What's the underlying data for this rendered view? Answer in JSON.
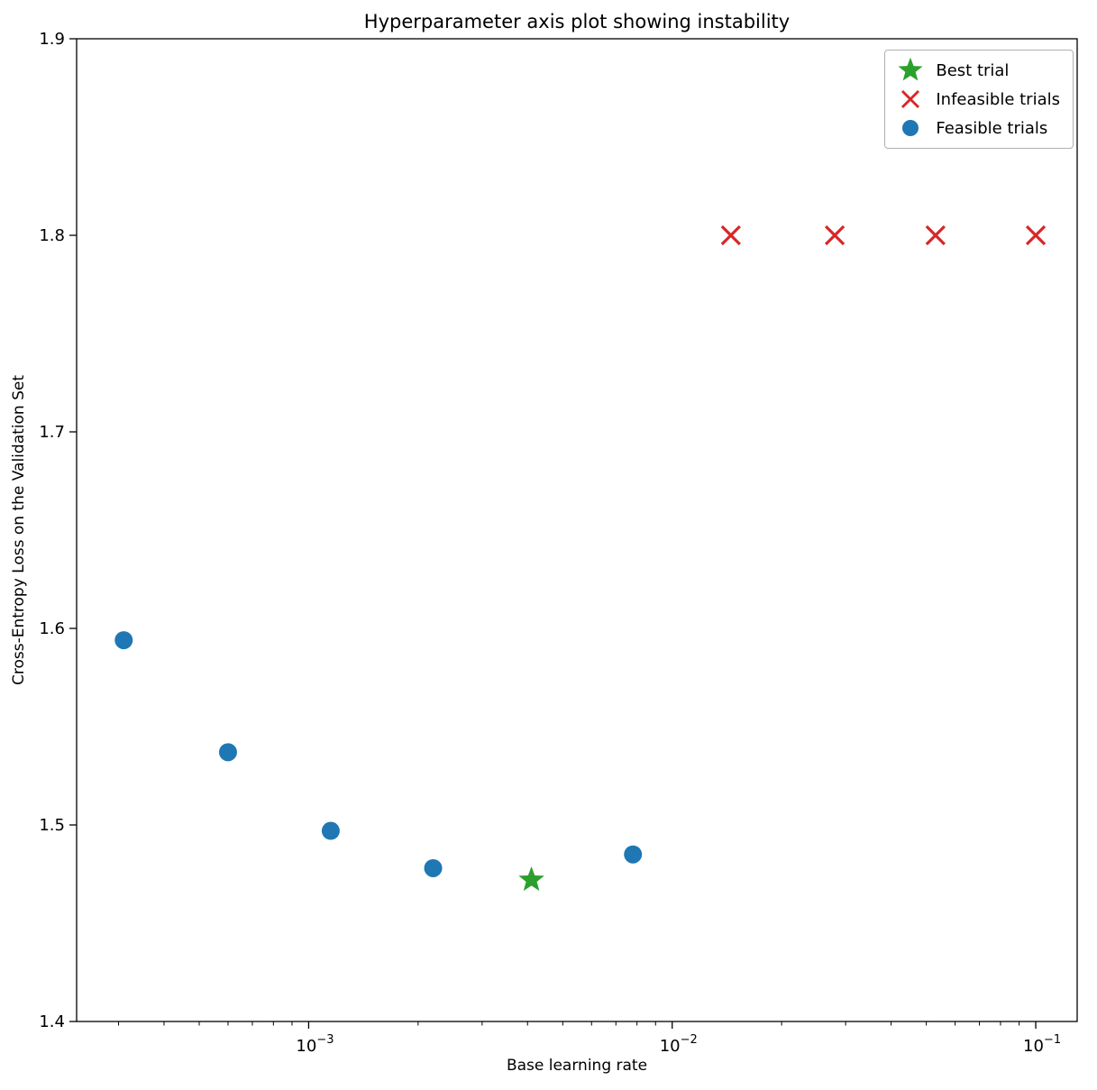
{
  "chart_data": {
    "type": "scatter",
    "title": "Hyperparameter axis plot showing instability",
    "xlabel": "Base learning rate",
    "ylabel": "Cross-Entropy Loss on the Validation Set",
    "xscale": "log",
    "yscale": "linear",
    "xlim": [
      0.00023,
      0.13
    ],
    "ylim": [
      1.4,
      1.9
    ],
    "xticks": [
      0.001,
      0.01,
      0.1
    ],
    "xtick_labels": [
      "10⁻³",
      "10⁻²",
      "10⁻¹"
    ],
    "yticks": [
      1.4,
      1.5,
      1.6,
      1.7,
      1.8,
      1.9
    ],
    "grid": false,
    "legend_position": "upper right",
    "series": [
      {
        "name": "Feasible trials",
        "marker": "circle",
        "color": "#1f77b4",
        "points": [
          [
            0.00031,
            1.594
          ],
          [
            0.0006,
            1.537
          ],
          [
            0.00115,
            1.497
          ],
          [
            0.0022,
            1.478
          ],
          [
            0.0078,
            1.485
          ]
        ]
      },
      {
        "name": "Best trial",
        "marker": "star",
        "color": "#2ca02c",
        "points": [
          [
            0.0041,
            1.472
          ]
        ]
      },
      {
        "name": "Infeasible trials",
        "marker": "x",
        "color": "#d62728",
        "points": [
          [
            0.0145,
            1.8
          ],
          [
            0.028,
            1.8
          ],
          [
            0.053,
            1.8
          ],
          [
            0.1,
            1.8
          ]
        ]
      }
    ],
    "legend": [
      {
        "label": "Best trial",
        "marker": "star",
        "color": "#2ca02c"
      },
      {
        "label": "Infeasible trials",
        "marker": "x",
        "color": "#d62728"
      },
      {
        "label": "Feasible trials",
        "marker": "circle",
        "color": "#1f77b4"
      }
    ]
  }
}
